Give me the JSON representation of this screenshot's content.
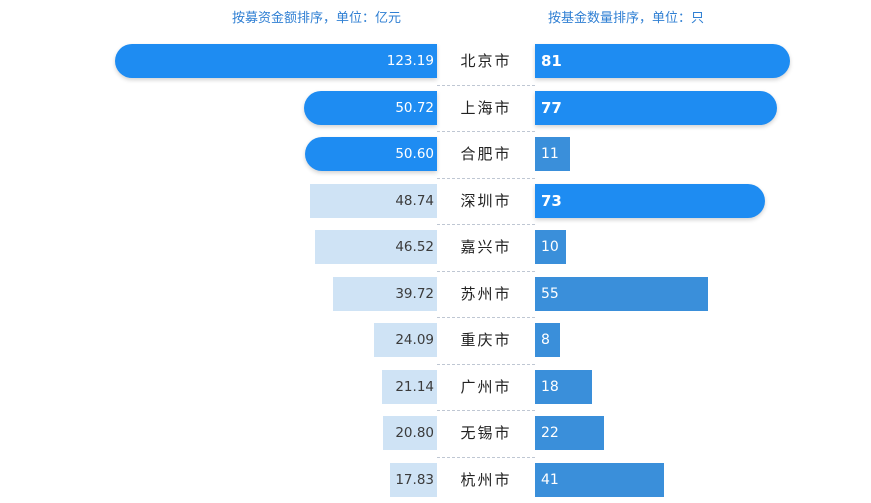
{
  "chart_data": {
    "type": "bar",
    "orientation": "horizontal-butterfly",
    "left_title": "按募资金额排序，单位：亿元",
    "right_title": "按基金数量排序，单位：只",
    "categories": [
      "北京市",
      "上海市",
      "合肥市",
      "深圳市",
      "嘉兴市",
      "苏州市",
      "重庆市",
      "广州市",
      "无锡市",
      "杭州市"
    ],
    "series": [
      {
        "name": "募资金额",
        "unit": "亿元",
        "values": [
          "123.19",
          "50.72",
          "50.60",
          "48.74",
          "46.52",
          "39.72",
          "24.09",
          "21.14",
          "20.80",
          "17.83"
        ]
      },
      {
        "name": "基金数量",
        "unit": "只",
        "values": [
          81,
          77,
          11,
          73,
          10,
          55,
          8,
          18,
          22,
          41
        ]
      }
    ],
    "left_highlight": [
      true,
      true,
      true,
      false,
      false,
      false,
      false,
      false,
      false,
      false
    ],
    "right_highlight": [
      true,
      true,
      false,
      true,
      false,
      false,
      false,
      false,
      false,
      false
    ],
    "colors": {
      "highlight": "#1e8cf2",
      "left_plain": "#cfe3f5",
      "right_plain": "#3a8fda",
      "header": "#2f7fd3"
    }
  }
}
